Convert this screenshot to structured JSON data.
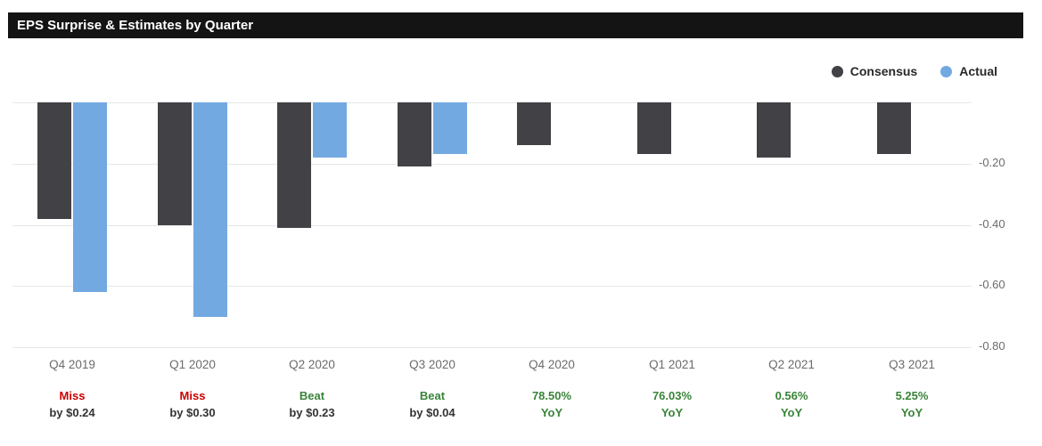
{
  "header": {
    "title": "EPS Surprise & Estimates by Quarter"
  },
  "legend": {
    "items": [
      {
        "label": "Consensus",
        "color": "#414146"
      },
      {
        "label": "Actual",
        "color": "#73a9e1"
      }
    ]
  },
  "colors": {
    "consensus": "#414146",
    "actual": "#73a9e1",
    "miss_red": "#cc0000",
    "beat_green": "#398439",
    "axis_text": "#6b6b6b",
    "grid": "#e6e6e6",
    "header_bg": "#141414",
    "header_text": "#ffffff",
    "annotation_dark": "#333333"
  },
  "chart_data": {
    "type": "bar",
    "title": "EPS Surprise & Estimates by Quarter",
    "categories": [
      "Q4 2019",
      "Q1 2020",
      "Q2 2020",
      "Q3 2020",
      "Q4 2020",
      "Q1 2021",
      "Q2 2021",
      "Q3 2021"
    ],
    "series": [
      {
        "name": "Consensus",
        "values": [
          -0.38,
          -0.4,
          -0.41,
          -0.21,
          -0.14,
          -0.17,
          -0.18,
          -0.17
        ]
      },
      {
        "name": "Actual",
        "values": [
          -0.62,
          -0.7,
          -0.18,
          -0.17,
          null,
          null,
          null,
          null
        ]
      }
    ],
    "ylim": [
      -0.8,
      0
    ],
    "grid": "on",
    "legend_position": "top-right",
    "grid_values": [
      0,
      -0.2,
      -0.4,
      -0.6,
      -0.8
    ],
    "yticks": [
      {
        "value": -0.2,
        "label": "-0.20"
      },
      {
        "value": -0.4,
        "label": "-0.40"
      },
      {
        "value": -0.6,
        "label": "-0.60"
      },
      {
        "value": -0.8,
        "label": "-0.80"
      }
    ],
    "annotations": [
      {
        "line1": "Miss",
        "line2": "by $0.24",
        "type": "miss"
      },
      {
        "line1": "Miss",
        "line2": "by $0.30",
        "type": "miss"
      },
      {
        "line1": "Beat",
        "line2": "by $0.23",
        "type": "beat"
      },
      {
        "line1": "Beat",
        "line2": "by $0.04",
        "type": "beat"
      },
      {
        "line1": "78.50%",
        "line2": "YoY",
        "type": "yoy"
      },
      {
        "line1": "76.03%",
        "line2": "YoY",
        "type": "yoy"
      },
      {
        "line1": "0.56%",
        "line2": "YoY",
        "type": "yoy"
      },
      {
        "line1": "5.25%",
        "line2": "YoY",
        "type": "yoy"
      }
    ]
  }
}
